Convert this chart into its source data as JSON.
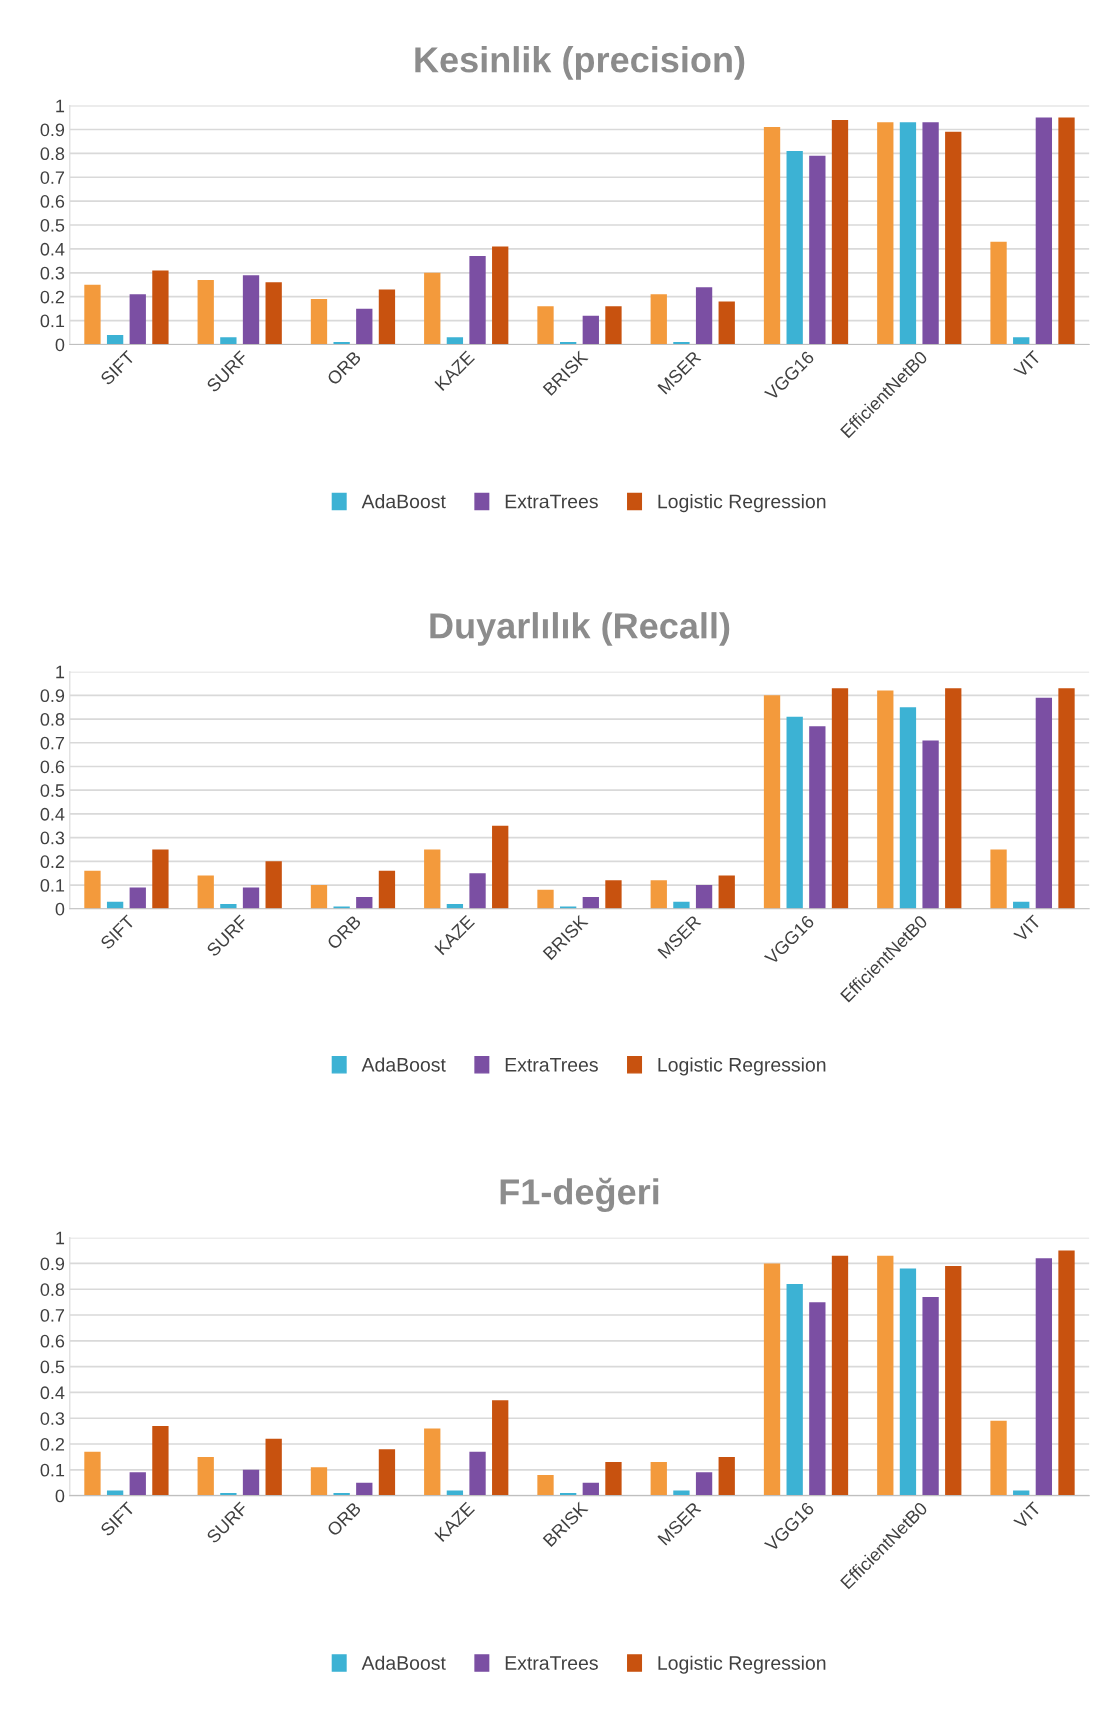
{
  "chart_data": [
    {
      "type": "bar",
      "title": "Kesinlik (precision)",
      "categories": [
        "SIFT",
        "SURF",
        "ORB",
        "KAZE",
        "BRISK",
        "MSER",
        "VGG16",
        "EfficientNetB0",
        "VIT"
      ],
      "series": [
        {
          "color": "#f39a3c",
          "values": [
            0.25,
            0.27,
            0.19,
            0.3,
            0.16,
            0.21,
            0.91,
            0.93,
            0.43
          ]
        },
        {
          "name": "AdaBoost",
          "color": "#3cb2d4",
          "values": [
            0.04,
            0.03,
            0.01,
            0.03,
            0.01,
            0.01,
            0.81,
            0.93,
            0.03
          ]
        },
        {
          "name": "ExtraTrees",
          "color": "#7b4fa3",
          "values": [
            0.21,
            0.29,
            0.15,
            0.37,
            0.12,
            0.24,
            0.79,
            0.93,
            0.95
          ]
        },
        {
          "name": "Logistic Regression",
          "color": "#c8520f",
          "values": [
            0.31,
            0.26,
            0.23,
            0.41,
            0.16,
            0.18,
            0.94,
            0.89,
            0.95
          ]
        }
      ],
      "ylim": [
        0,
        1
      ],
      "yticks": [
        0,
        0.1,
        0.2,
        0.3,
        0.4,
        0.5,
        0.6,
        0.7,
        0.8,
        0.9,
        1
      ],
      "grid": "y",
      "legend": "bottom"
    },
    {
      "type": "bar",
      "title": "Duyarlılık (Recall)",
      "categories": [
        "SIFT",
        "SURF",
        "ORB",
        "KAZE",
        "BRISK",
        "MSER",
        "VGG16",
        "EfficientNetB0",
        "VIT"
      ],
      "series": [
        {
          "color": "#f39a3c",
          "values": [
            0.16,
            0.14,
            0.1,
            0.25,
            0.08,
            0.12,
            0.9,
            0.92,
            0.25
          ]
        },
        {
          "name": "AdaBoost",
          "color": "#3cb2d4",
          "values": [
            0.03,
            0.02,
            0.01,
            0.02,
            0.01,
            0.03,
            0.81,
            0.85,
            0.03
          ]
        },
        {
          "name": "ExtraTrees",
          "color": "#7b4fa3",
          "values": [
            0.09,
            0.09,
            0.05,
            0.15,
            0.05,
            0.1,
            0.77,
            0.71,
            0.89
          ]
        },
        {
          "name": "Logistic Regression",
          "color": "#c8520f",
          "values": [
            0.25,
            0.2,
            0.16,
            0.35,
            0.12,
            0.14,
            0.93,
            0.93,
            0.93
          ]
        }
      ],
      "ylim": [
        0,
        1
      ],
      "yticks": [
        0,
        0.1,
        0.2,
        0.3,
        0.4,
        0.5,
        0.6,
        0.7,
        0.8,
        0.9,
        1
      ],
      "grid": "y",
      "legend": "bottom"
    },
    {
      "type": "bar",
      "title": "F1-değeri",
      "categories": [
        "SIFT",
        "SURF",
        "ORB",
        "KAZE",
        "BRISK",
        "MSER",
        "VGG16",
        "EfficientNetB0",
        "VIT"
      ],
      "series": [
        {
          "color": "#f39a3c",
          "values": [
            0.17,
            0.15,
            0.11,
            0.26,
            0.08,
            0.13,
            0.9,
            0.93,
            0.29
          ]
        },
        {
          "name": "AdaBoost",
          "color": "#3cb2d4",
          "values": [
            0.02,
            0.01,
            0.01,
            0.02,
            0.01,
            0.02,
            0.82,
            0.88,
            0.02
          ]
        },
        {
          "name": "ExtraTrees",
          "color": "#7b4fa3",
          "values": [
            0.09,
            0.1,
            0.05,
            0.17,
            0.05,
            0.09,
            0.75,
            0.77,
            0.92
          ]
        },
        {
          "name": "Logistic Regression",
          "color": "#c8520f",
          "values": [
            0.27,
            0.22,
            0.18,
            0.37,
            0.13,
            0.15,
            0.93,
            0.89,
            0.95
          ]
        }
      ],
      "ylim": [
        0,
        1
      ],
      "yticks": [
        0,
        0.1,
        0.2,
        0.3,
        0.4,
        0.5,
        0.6,
        0.7,
        0.8,
        0.9,
        1
      ],
      "grid": "y",
      "legend": "bottom"
    }
  ]
}
